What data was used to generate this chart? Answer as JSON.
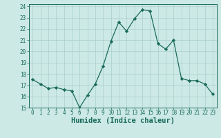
{
  "x": [
    0,
    1,
    2,
    3,
    4,
    5,
    6,
    7,
    8,
    9,
    10,
    11,
    12,
    13,
    14,
    15,
    16,
    17,
    18,
    19,
    20,
    21,
    22,
    23
  ],
  "y": [
    17.5,
    17.1,
    16.7,
    16.8,
    16.6,
    16.5,
    15.0,
    16.1,
    17.1,
    18.7,
    20.9,
    22.6,
    21.8,
    22.9,
    23.7,
    23.6,
    20.7,
    20.2,
    21.0,
    17.6,
    17.4,
    17.4,
    17.1,
    16.2
  ],
  "xlabel": "Humidex (Indice chaleur)",
  "ylim": [
    15,
    24
  ],
  "xlim": [
    -0.5,
    23.5
  ],
  "yticks": [
    15,
    16,
    17,
    18,
    19,
    20,
    21,
    22,
    23,
    24
  ],
  "xticks": [
    0,
    1,
    2,
    3,
    4,
    5,
    6,
    7,
    8,
    9,
    10,
    11,
    12,
    13,
    14,
    15,
    16,
    17,
    18,
    19,
    20,
    21,
    22,
    23
  ],
  "line_color": "#1a6b5a",
  "marker": "D",
  "marker_size": 2.2,
  "bg_color": "#cce9e5",
  "grid_color": "#aacfcc",
  "tick_label_fontsize": 5.5,
  "xlabel_fontsize": 7.5
}
